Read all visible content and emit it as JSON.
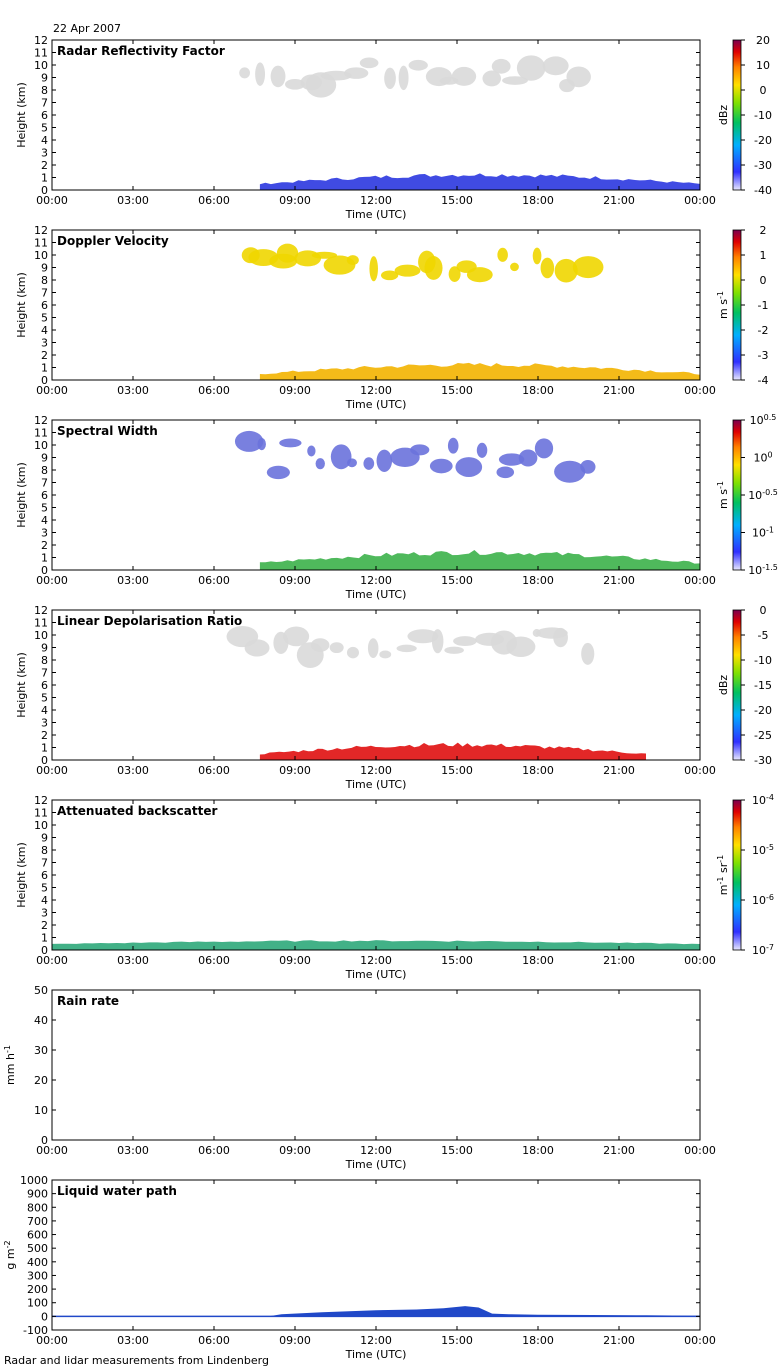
{
  "date": "22 Apr 2007",
  "footer": "Radar and lidar measurements from Lindenberg",
  "time_ticks": [
    "00:00",
    "03:00",
    "06:00",
    "09:00",
    "12:00",
    "15:00",
    "18:00",
    "21:00",
    "00:00"
  ],
  "time_label": "Time (UTC)",
  "chart_data": [
    {
      "type": "heatmap",
      "title": "Radar Reflectivity Factor",
      "xlabel": "Time (UTC)",
      "ylabel": "Height (km)",
      "yticks": [
        "0",
        "1",
        "2",
        "3",
        "4",
        "5",
        "6",
        "7",
        "8",
        "9",
        "10",
        "11",
        "12"
      ],
      "ylim": [
        0,
        12
      ],
      "colorbar": {
        "label": "dBz",
        "ticks": [
          "20",
          "10",
          "0",
          "-10",
          "-20",
          "-30",
          "-40"
        ],
        "range": [
          -40,
          20
        ]
      },
      "colormap": "rainbow",
      "features": [
        {
          "name": "cirrus",
          "t0": 6.9,
          "t1": 20.0,
          "h0": 7.5,
          "h1": 10.2,
          "color": "#d9d9d9"
        },
        {
          "name": "boundary layer",
          "t0": 7.7,
          "t1": 24.0,
          "h0": 0.0,
          "h1": 1.4,
          "color": "#2b37e0"
        }
      ]
    },
    {
      "type": "heatmap",
      "title": "Doppler Velocity",
      "xlabel": "Time (UTC)",
      "ylabel": "Height (km)",
      "yticks": [
        "0",
        "1",
        "2",
        "3",
        "4",
        "5",
        "6",
        "7",
        "8",
        "9",
        "10",
        "11",
        "12"
      ],
      "ylim": [
        0,
        12
      ],
      "colorbar": {
        "label": "m s-1",
        "ticks": [
          "2",
          "1",
          "0",
          "-1",
          "-2",
          "-3",
          "-4"
        ],
        "range": [
          -4,
          2
        ]
      },
      "colormap": "rainbow",
      "features": [
        {
          "name": "cirrus",
          "t0": 6.9,
          "t1": 20.0,
          "h0": 7.5,
          "h1": 10.2,
          "color": "#f0d600"
        },
        {
          "name": "boundary layer",
          "t0": 7.7,
          "t1": 24.0,
          "h0": 0.0,
          "h1": 1.4,
          "color": "#f3b400"
        }
      ]
    },
    {
      "type": "heatmap",
      "title": "Spectral Width",
      "xlabel": "Time (UTC)",
      "ylabel": "Height (km)",
      "yticks": [
        "0",
        "1",
        "2",
        "3",
        "4",
        "5",
        "6",
        "7",
        "8",
        "9",
        "10",
        "11",
        "12"
      ],
      "ylim": [
        0,
        12
      ],
      "colorbar": {
        "label": "m s-1",
        "ticks": [
          "10^0.5",
          "10^0",
          "10^-0.5",
          "10^-1",
          "10^-1.5"
        ],
        "range": [
          -1.5,
          0.5
        ],
        "log": true
      },
      "colormap": "rainbow",
      "features": [
        {
          "name": "cirrus",
          "t0": 6.9,
          "t1": 20.0,
          "h0": 6.5,
          "h1": 10.3,
          "color": "#6a72dc"
        },
        {
          "name": "boundary layer",
          "t0": 7.7,
          "t1": 24.0,
          "h0": 0.0,
          "h1": 1.6,
          "color": "#3cb14a"
        }
      ]
    },
    {
      "type": "heatmap",
      "title": "Linear Depolarisation Ratio",
      "xlabel": "Time (UTC)",
      "ylabel": "Height (km)",
      "yticks": [
        "0",
        "1",
        "2",
        "3",
        "4",
        "5",
        "6",
        "7",
        "8",
        "9",
        "10",
        "11",
        "12"
      ],
      "ylim": [
        0,
        12
      ],
      "colorbar": {
        "label": "dBz",
        "ticks": [
          "0",
          "-5",
          "-10",
          "-15",
          "-20",
          "-25",
          "-30"
        ],
        "range": [
          -30,
          0
        ]
      },
      "colormap": "rainbow",
      "features": [
        {
          "name": "cirrus",
          "t0": 6.9,
          "t1": 20.0,
          "h0": 7.5,
          "h1": 10.2,
          "color": "#d9d9d9"
        },
        {
          "name": "boundary layer",
          "t0": 7.7,
          "t1": 22.0,
          "h0": 0.0,
          "h1": 1.4,
          "color": "#e01010"
        }
      ]
    },
    {
      "type": "heatmap",
      "title": "Attenuated backscatter",
      "xlabel": "Time (UTC)",
      "ylabel": "Height (km)",
      "yticks": [
        "0",
        "1",
        "2",
        "3",
        "4",
        "5",
        "6",
        "7",
        "8",
        "9",
        "10",
        "11",
        "12"
      ],
      "ylim": [
        0,
        12
      ],
      "colorbar": {
        "label": "m-1 sr-1",
        "ticks": [
          "10^-4",
          "10^-5",
          "10^-6",
          "10^-7"
        ],
        "range": [
          -7,
          -4
        ],
        "log": true
      },
      "colormap": "rainbow",
      "features": [
        {
          "name": "aerosol layer",
          "t0": 0.0,
          "t1": 24.0,
          "h0": 0.3,
          "h1": 0.8,
          "color": "#2ea87a"
        }
      ]
    },
    {
      "type": "line",
      "title": "Rain rate",
      "xlabel": "Time (UTC)",
      "ylabel": "mm h-1",
      "yticks": [
        "0",
        "10",
        "20",
        "30",
        "40",
        "50"
      ],
      "ylim": [
        0,
        50
      ],
      "x": [
        0,
        24
      ],
      "y": [
        0,
        0
      ]
    },
    {
      "type": "area",
      "title": "Liquid water path",
      "xlabel": "Time (UTC)",
      "ylabel": "g m-2",
      "yticks": [
        "-100",
        "0",
        "100",
        "200",
        "300",
        "400",
        "500",
        "600",
        "700",
        "800",
        "900",
        "1000"
      ],
      "ylim": [
        -100,
        1000
      ],
      "color": "#2048c8",
      "x": [
        0,
        8,
        8.5,
        10,
        12,
        13.5,
        14.5,
        15.3,
        15.8,
        16.3,
        17,
        18,
        20,
        22,
        24
      ],
      "y": [
        0,
        0,
        15,
        30,
        45,
        50,
        60,
        75,
        65,
        20,
        15,
        12,
        10,
        8,
        5
      ]
    }
  ]
}
